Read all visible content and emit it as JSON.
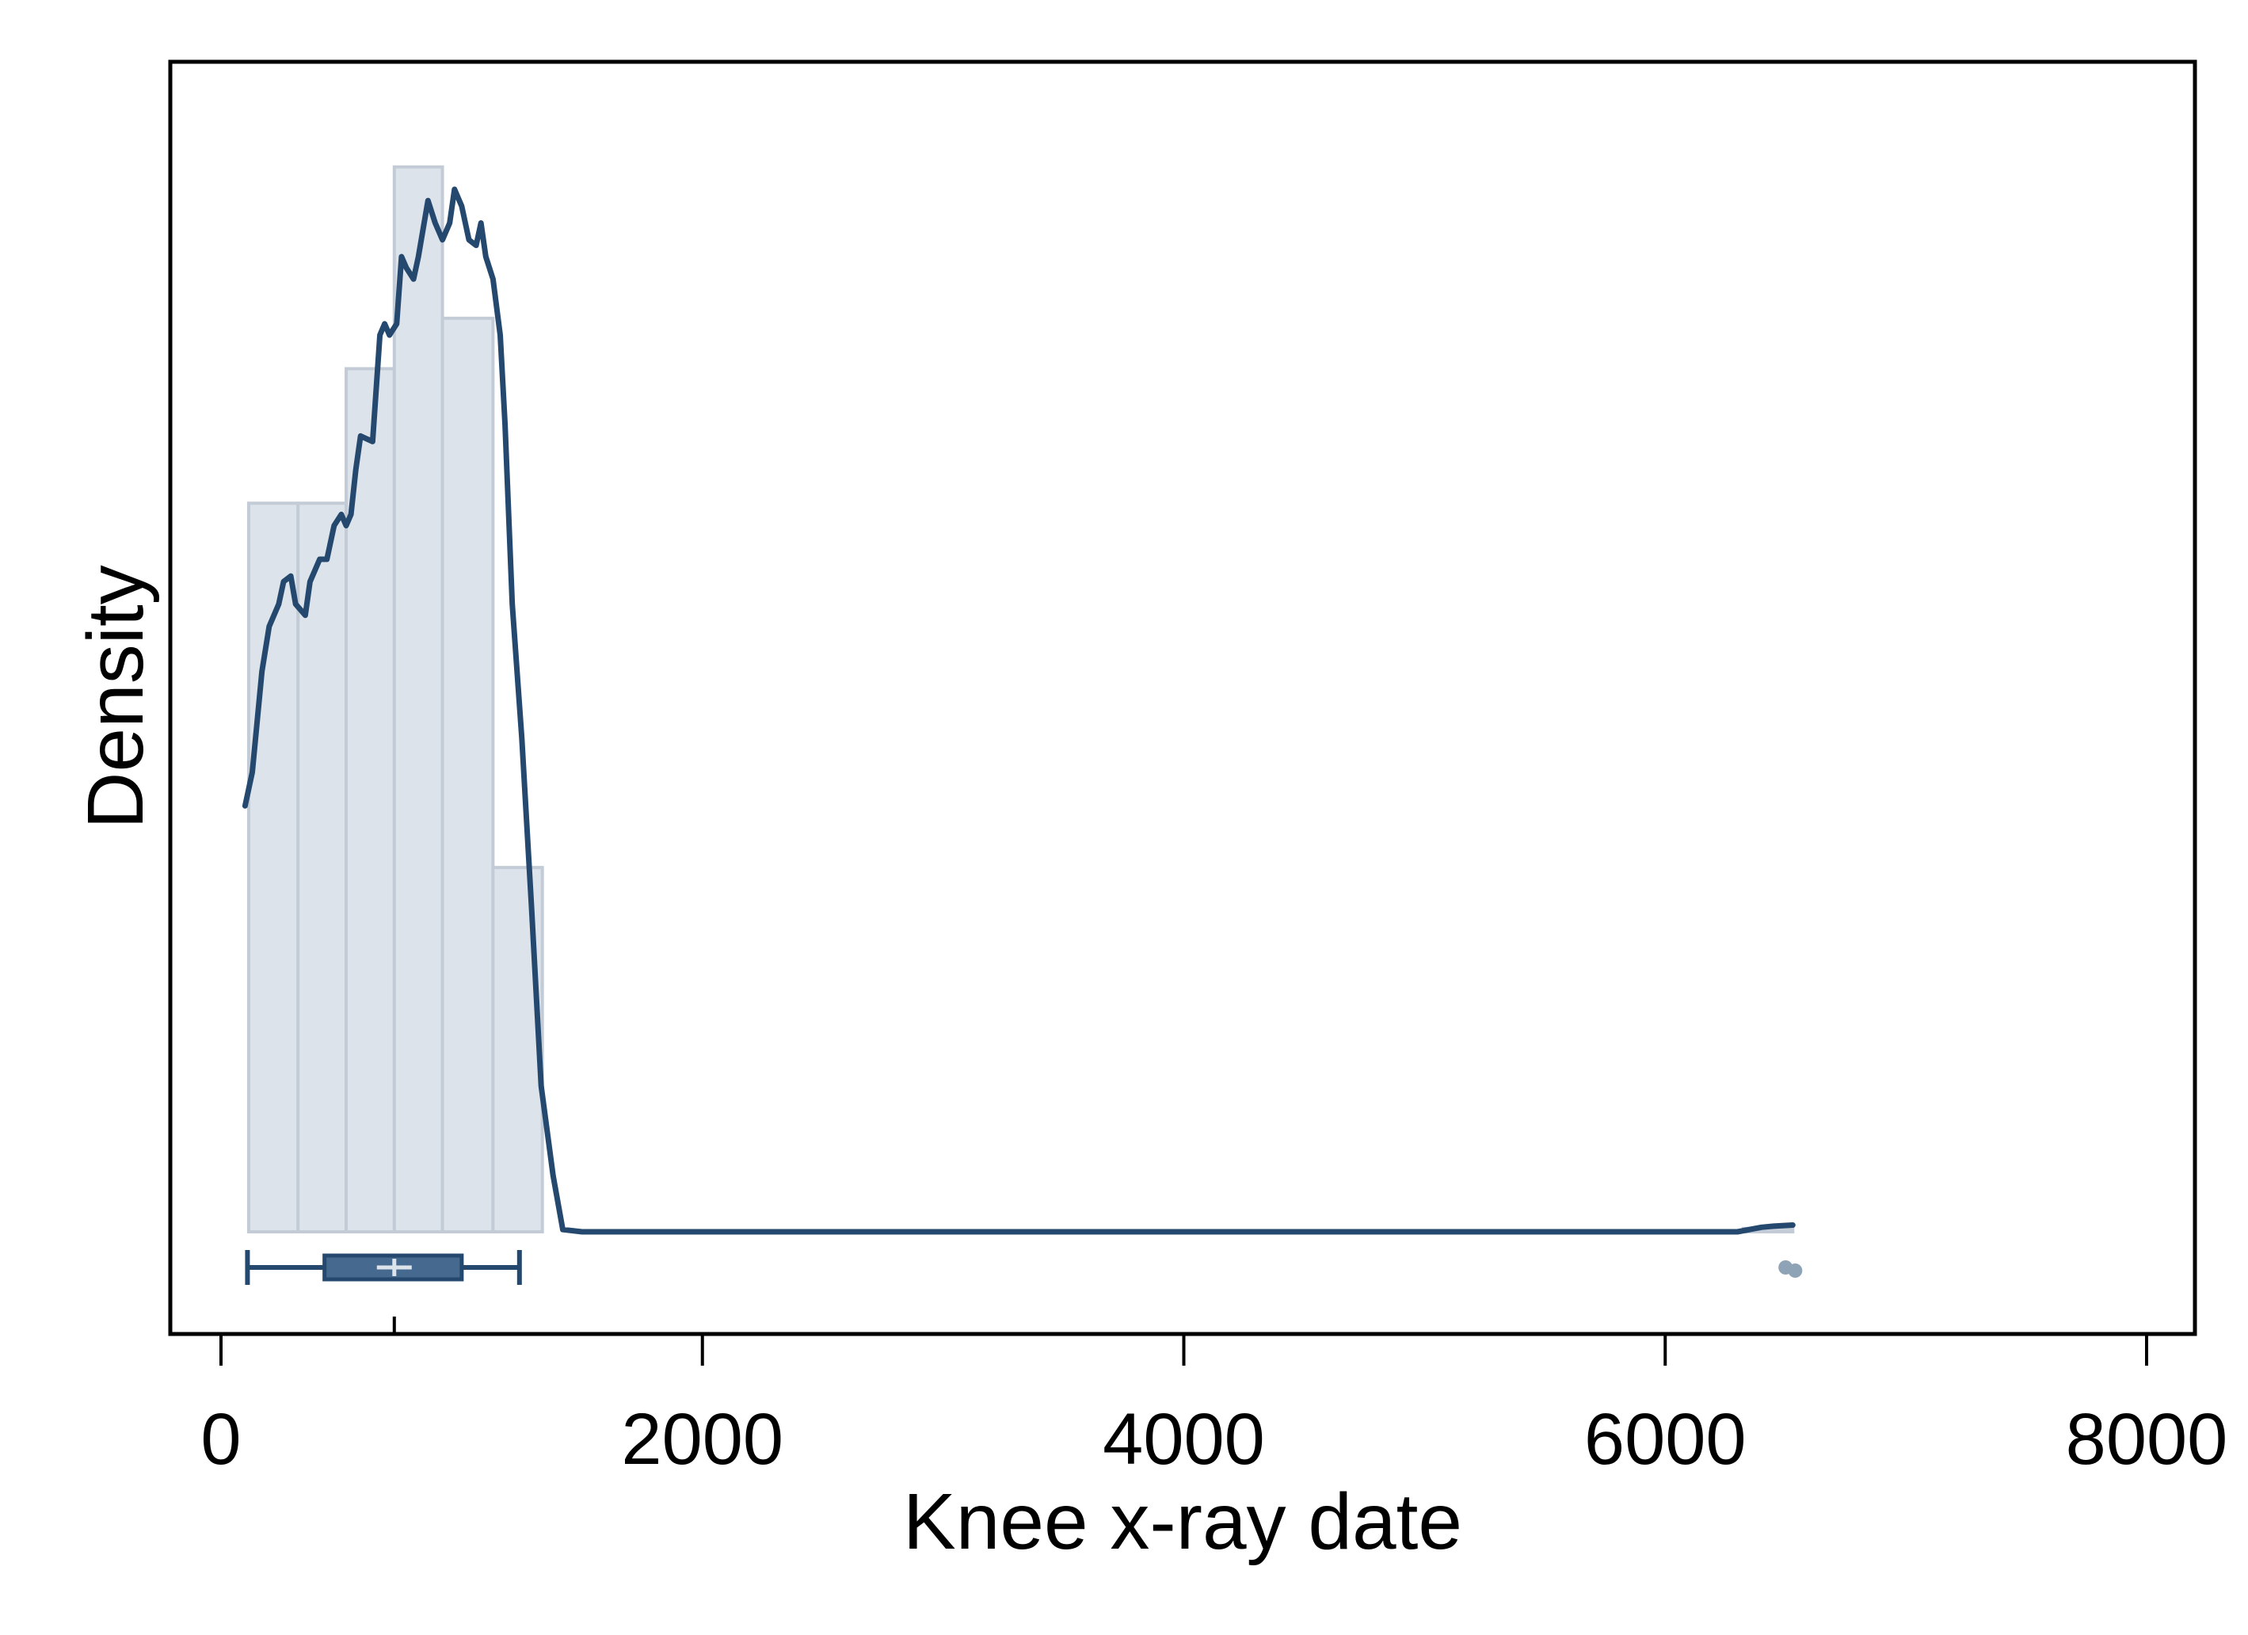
{
  "chart_data": {
    "type": "histogram",
    "xlabel": "Knee x-ray date",
    "ylabel": "Density",
    "xlim": [
      -200,
      8200
    ],
    "x_ticks": [
      0,
      2000,
      4000,
      6000,
      8000
    ],
    "x_tick_labels": [
      "0",
      "2000",
      "4000",
      "6000",
      "8000"
    ],
    "y_ticks_shown": false,
    "grid": false,
    "histogram": {
      "bins": [
        {
          "x_start": 115,
          "x_end": 320,
          "height_rel": 0.65
        },
        {
          "x_start": 320,
          "x_end": 520,
          "height_rel": 0.65
        },
        {
          "x_start": 520,
          "x_end": 720,
          "height_rel": 0.77
        },
        {
          "x_start": 720,
          "x_end": 920,
          "height_rel": 0.95
        },
        {
          "x_start": 920,
          "x_end": 1130,
          "height_rel": 0.815
        },
        {
          "x_start": 1130,
          "x_end": 1335,
          "height_rel": 0.325
        },
        {
          "x_start": 6325,
          "x_end": 6530,
          "height_rel": 0.003
        }
      ]
    },
    "density_curve": {
      "x": [
        100,
        130,
        170,
        200,
        240,
        260,
        290,
        310,
        350,
        370,
        390,
        410,
        440,
        470,
        500,
        520,
        540,
        560,
        580,
        630,
        660,
        680,
        700,
        730,
        750,
        770,
        800,
        820,
        860,
        890,
        920,
        950,
        970,
        1000,
        1030,
        1060,
        1080,
        1100,
        1130,
        1160,
        1180,
        1210,
        1250,
        1290,
        1330,
        1380,
        1420,
        1500,
        2000,
        4000,
        6000,
        6300,
        6400,
        6450,
        6530
      ],
      "y_rel": [
        0.38,
        0.41,
        0.5,
        0.54,
        0.56,
        0.58,
        0.585,
        0.56,
        0.55,
        0.58,
        0.59,
        0.6,
        0.6,
        0.63,
        0.64,
        0.63,
        0.64,
        0.68,
        0.71,
        0.705,
        0.8,
        0.81,
        0.8,
        0.81,
        0.87,
        0.86,
        0.85,
        0.87,
        0.92,
        0.9,
        0.885,
        0.9,
        0.93,
        0.915,
        0.885,
        0.88,
        0.9,
        0.87,
        0.85,
        0.8,
        0.72,
        0.56,
        0.44,
        0.29,
        0.13,
        0.05,
        0.002,
        0.0,
        0.0,
        0.0,
        0.0,
        0.0,
        0.004,
        0.005,
        0.006
      ]
    },
    "boxplot": {
      "whisker_low": 110,
      "q1": 430,
      "median": 720,
      "mean": 720,
      "q3": 1000,
      "whisker_high": 1240,
      "outliers": [
        6500,
        6540
      ]
    }
  }
}
